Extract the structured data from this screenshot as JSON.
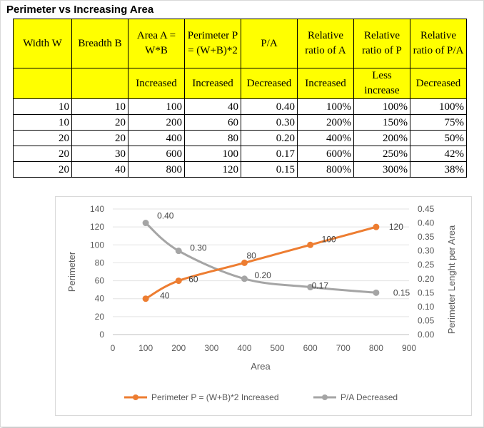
{
  "title": "Perimeter vs Increasing Area",
  "table": {
    "headers": [
      "Width W",
      "Breadth B",
      "Area A = W*B",
      "Perimeter P = (W+B)*2",
      "P/A",
      "Relative ratio of A",
      "Relative ratio of P",
      "Relative ratio of P/A"
    ],
    "trend": [
      "",
      "",
      "Increased",
      "Increased",
      "Decreased",
      "Increased",
      "Less increase",
      "Decreased"
    ],
    "rows": [
      [
        "10",
        "10",
        "100",
        "40",
        "0.40",
        "100%",
        "100%",
        "100%"
      ],
      [
        "10",
        "20",
        "200",
        "60",
        "0.30",
        "200%",
        "150%",
        "75%"
      ],
      [
        "20",
        "20",
        "400",
        "80",
        "0.20",
        "400%",
        "200%",
        "50%"
      ],
      [
        "20",
        "30",
        "600",
        "100",
        "0.17",
        "600%",
        "250%",
        "42%"
      ],
      [
        "20",
        "40",
        "800",
        "120",
        "0.15",
        "800%",
        "300%",
        "38%"
      ]
    ]
  },
  "chart_data": {
    "type": "line",
    "xlabel": "Area",
    "ylabel": "Perimeter",
    "y2label": "Perimeter Lenght per Area",
    "xlim": [
      0,
      900
    ],
    "ylim": [
      0,
      140
    ],
    "y2lim": [
      0,
      0.45
    ],
    "x_ticks": [
      "0",
      "100",
      "200",
      "300",
      "400",
      "500",
      "600",
      "700",
      "800",
      "900"
    ],
    "y_ticks": [
      "0",
      "20",
      "40",
      "60",
      "80",
      "100",
      "120",
      "140"
    ],
    "y2_ticks": [
      "0.00",
      "0.05",
      "0.10",
      "0.15",
      "0.20",
      "0.25",
      "0.30",
      "0.35",
      "0.40",
      "0.45"
    ],
    "grid": true,
    "legend_position": "bottom",
    "series": [
      {
        "name": "Perimeter P = (W+B)*2 Increased",
        "axis": "left",
        "color": "#ed7d31",
        "x": [
          100,
          200,
          400,
          600,
          800
        ],
        "values": [
          40,
          60,
          80,
          100,
          120
        ],
        "labels": [
          "40",
          "60",
          "80",
          "100",
          "120"
        ]
      },
      {
        "name": "P/A Decreased",
        "axis": "right",
        "color": "#a5a5a5",
        "x": [
          100,
          200,
          400,
          600,
          800
        ],
        "values": [
          0.4,
          0.3,
          0.2,
          0.17,
          0.15
        ],
        "labels": [
          "0.40",
          "0.30",
          "0.20",
          "0.17",
          "0.15"
        ]
      }
    ]
  }
}
